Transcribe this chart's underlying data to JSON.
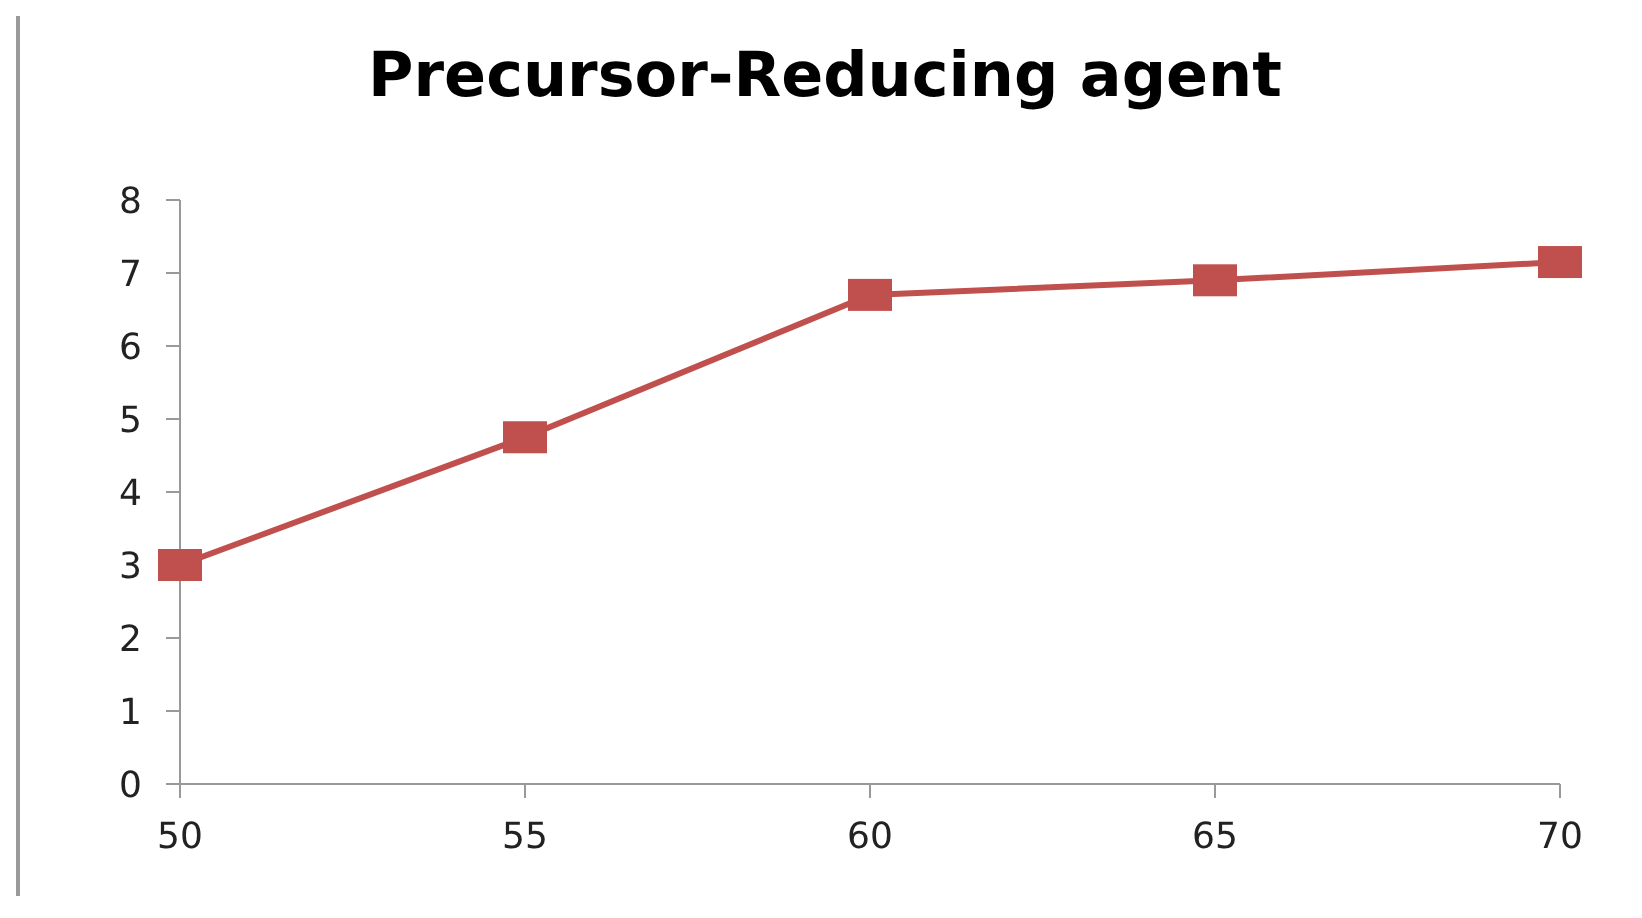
{
  "chart_data": {
    "type": "line",
    "title": "Precursor-Reducing agent",
    "x": [
      50,
      55,
      60,
      65,
      70
    ],
    "series": [
      {
        "color": "#c0504d",
        "values": [
          3.0,
          4.75,
          6.7,
          6.9,
          7.15
        ]
      }
    ],
    "xlim": [
      50,
      70
    ],
    "xticks": [
      50,
      55,
      60,
      65,
      70
    ],
    "ylim": [
      0,
      8
    ],
    "yticks": [
      0,
      1,
      2,
      3,
      4,
      5,
      6,
      7,
      8
    ],
    "marker": "square",
    "line_style": "solid"
  }
}
